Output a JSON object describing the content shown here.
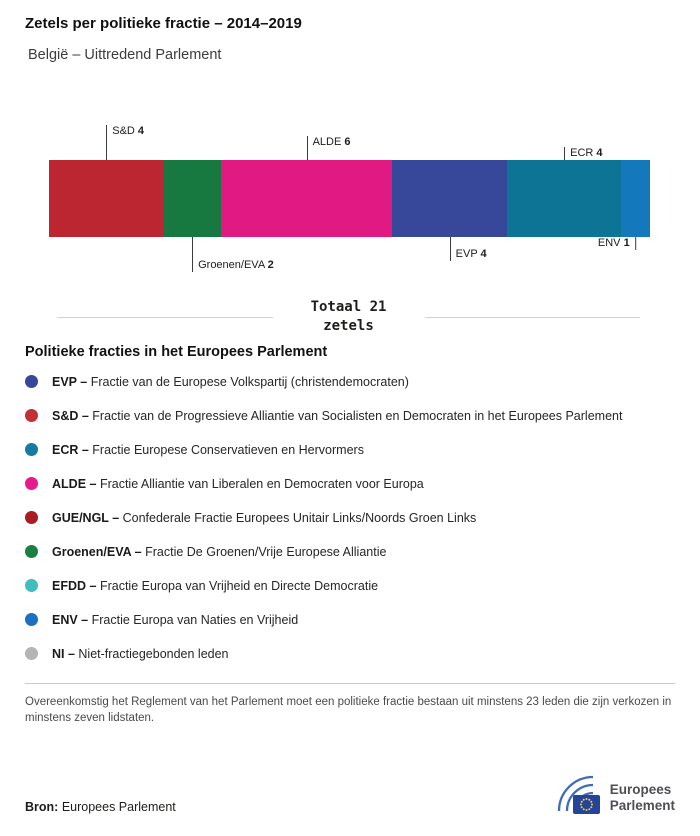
{
  "header": {
    "title": "Zetels per politieke fractie – 2014–2019",
    "subtitle": "België – Uittredend Parlement"
  },
  "chart_data": {
    "type": "bar",
    "variant": "horizontal-stacked",
    "title": "Zetels per politieke fractie – 2014–2019",
    "subtitle": "België – Uittredend Parlement",
    "total_seats": 21,
    "grid": false,
    "legend_position": "below",
    "segments": [
      {
        "name": "S&D",
        "value": 4,
        "color": "#bc2631",
        "label_position": "above",
        "label_tier": 3
      },
      {
        "name": "Groenen/EVA",
        "value": 2,
        "color": "#17793f",
        "label_position": "below",
        "label_tier": 3
      },
      {
        "name": "ALDE",
        "value": 6,
        "color": "#e01a82",
        "label_position": "above",
        "label_tier": 2
      },
      {
        "name": "EVP",
        "value": 4,
        "color": "#37489b",
        "label_position": "below",
        "label_tier": 2
      },
      {
        "name": "ECR",
        "value": 4,
        "color": "#0e7495",
        "label_position": "above",
        "label_tier": 1
      },
      {
        "name": "ENV",
        "value": 1,
        "color": "#1478bd",
        "label_position": "below",
        "label_tier": 1,
        "label_align": "right"
      }
    ]
  },
  "total_callout": {
    "line1": "Totaal 21",
    "line2": "zetels"
  },
  "legend": {
    "heading": "Politieke fracties in het Europees Parlement",
    "items": [
      {
        "abbr": "EVP –",
        "desc": "Fractie van de Europese Volkspartij (christendemocraten)",
        "color": "#37489b"
      },
      {
        "abbr": "S&D –",
        "desc": "Fractie van de Progressieve Alliantie van Socialisten en Democraten in het Europees Parlement",
        "color": "#c22f35"
      },
      {
        "abbr": "ECR –",
        "desc": "Fractie Europese Conservatieven en Hervormers",
        "color": "#157ba0"
      },
      {
        "abbr": "ALDE –",
        "desc": "Fractie Alliantie van Liberalen en Democraten voor Europa",
        "color": "#e61a8d"
      },
      {
        "abbr": "GUE/NGL –",
        "desc": "Confederale Fractie Europees Unitair Links/Noords Groen Links",
        "color": "#a81c22"
      },
      {
        "abbr": "Groenen/EVA –",
        "desc": "Fractie De Groenen/Vrije Europese Alliantie",
        "color": "#1b7f41"
      },
      {
        "abbr": "EFDD –",
        "desc": "Fractie Europa van Vrijheid en Directe Democratie",
        "color": "#3fbdbf"
      },
      {
        "abbr": "ENV –",
        "desc": "Fractie Europa van Naties en Vrijheid",
        "color": "#1d6fc2"
      },
      {
        "abbr": "NI –",
        "desc": "Niet-fractiegebonden leden",
        "color": "#b5b5b5"
      }
    ]
  },
  "footnote": "Overeenkomstig het Reglement van het Parlement moet een politieke fractie bestaan uit minstens 23 leden die zijn verkozen in minstens zeven lidstaten.",
  "source": {
    "label": "Bron:",
    "value": "Europees Parlement"
  },
  "logo": {
    "line1": "Europees",
    "line2": "Parlement"
  }
}
